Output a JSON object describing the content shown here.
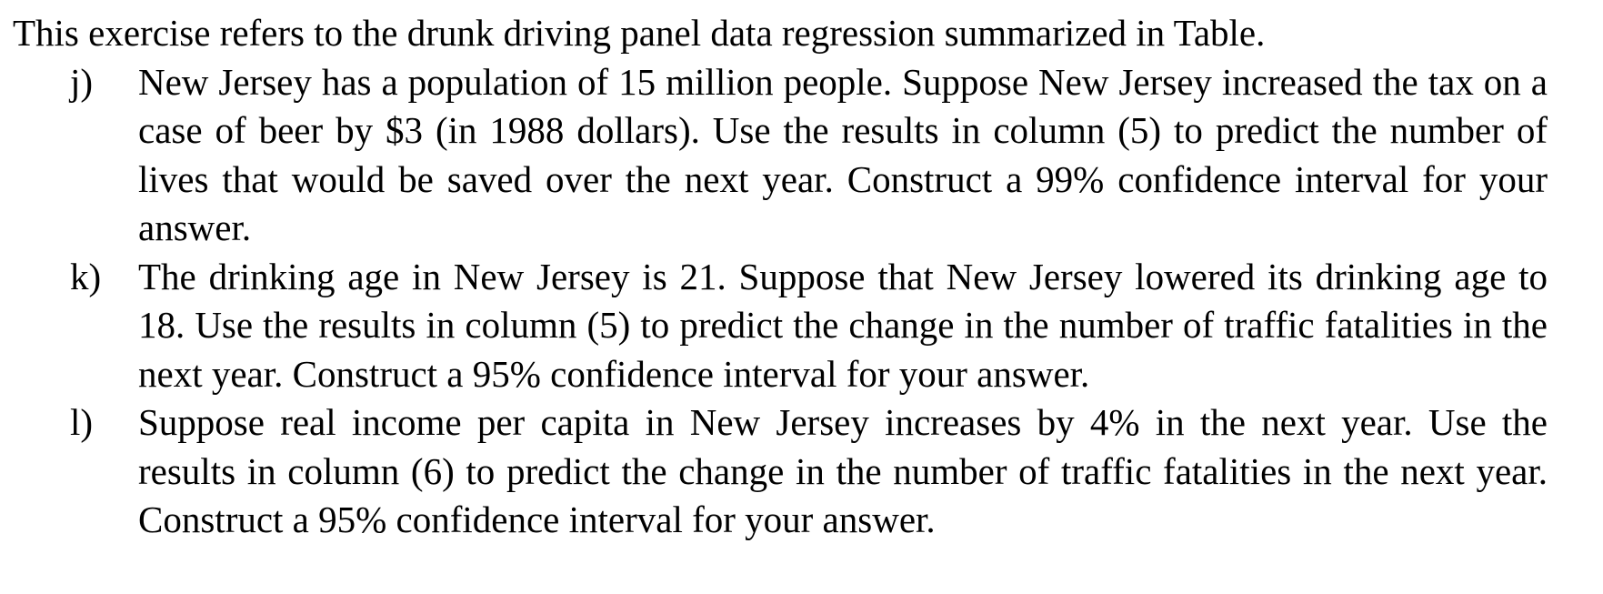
{
  "intro": "This exercise refers to the drunk driving panel data regression summarized in Table.",
  "items": [
    {
      "marker": "j)",
      "text": "New Jersey has a population of 15 million people. Suppose New Jersey increased the tax on a case of beer by $3 (in 1988 dollars). Use the results in column (5) to predict the number of lives that would be saved over the next year. Construct a 99% confidence interval for your answer."
    },
    {
      "marker": "k)",
      "text": "The drinking age in New Jersey is 21. Suppose that New Jersey lowered its drinking age to 18. Use the results in column (5) to predict the change in the number of traffic fatalities in the next year. Construct a 95% confidence interval for your answer."
    },
    {
      "marker": "l)",
      "text": "Suppose real income per capita in New Jersey increases by 4% in the next year. Use the results in column (6) to predict the change in the number of traffic fatalities in the next year. Construct a 95% confidence interval for your answer."
    }
  ]
}
